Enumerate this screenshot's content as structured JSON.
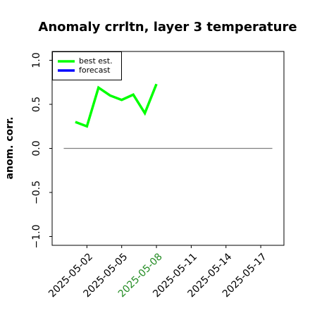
{
  "chart_data": {
    "type": "line",
    "title": "Anomaly crrltn, layer 3 temperature",
    "ylabel": "anom. corr.",
    "x": [
      "2025-05-01",
      "2025-05-02",
      "2025-05-03",
      "2025-05-04",
      "2025-05-05",
      "2025-05-06",
      "2025-05-07",
      "2025-05-08"
    ],
    "series": [
      {
        "name": "best est.",
        "color": "#00ff00",
        "values": [
          0.3,
          0.25,
          0.69,
          0.6,
          0.55,
          0.61,
          0.4,
          0.73
        ]
      },
      {
        "name": "forecast",
        "color": "#0000ff",
        "values": [
          null,
          null,
          null,
          null,
          null,
          null,
          null,
          null
        ]
      }
    ],
    "reference_line": {
      "y": 0,
      "x": [
        "2025-04-30",
        "2025-05-18"
      ],
      "color": "#808080"
    },
    "xlim": [
      "2025-04-29",
      "2025-05-19"
    ],
    "xticks": [
      "2025-05-02",
      "2025-05-05",
      "2025-05-08",
      "2025-05-11",
      "2025-05-14",
      "2025-05-17"
    ],
    "highlight_xtick": {
      "index": 2,
      "color": "#228b22"
    },
    "ylim": [
      -1.1,
      1.1
    ],
    "yticks": [
      {
        "value": 1,
        "label": "1.0"
      },
      0.5,
      {
        "value": 0,
        "label": "0.0"
      },
      {
        "value": -0.5,
        "label": "−0.5"
      },
      {
        "value": -1,
        "label": "−1.0"
      }
    ],
    "legend": "upper left"
  }
}
